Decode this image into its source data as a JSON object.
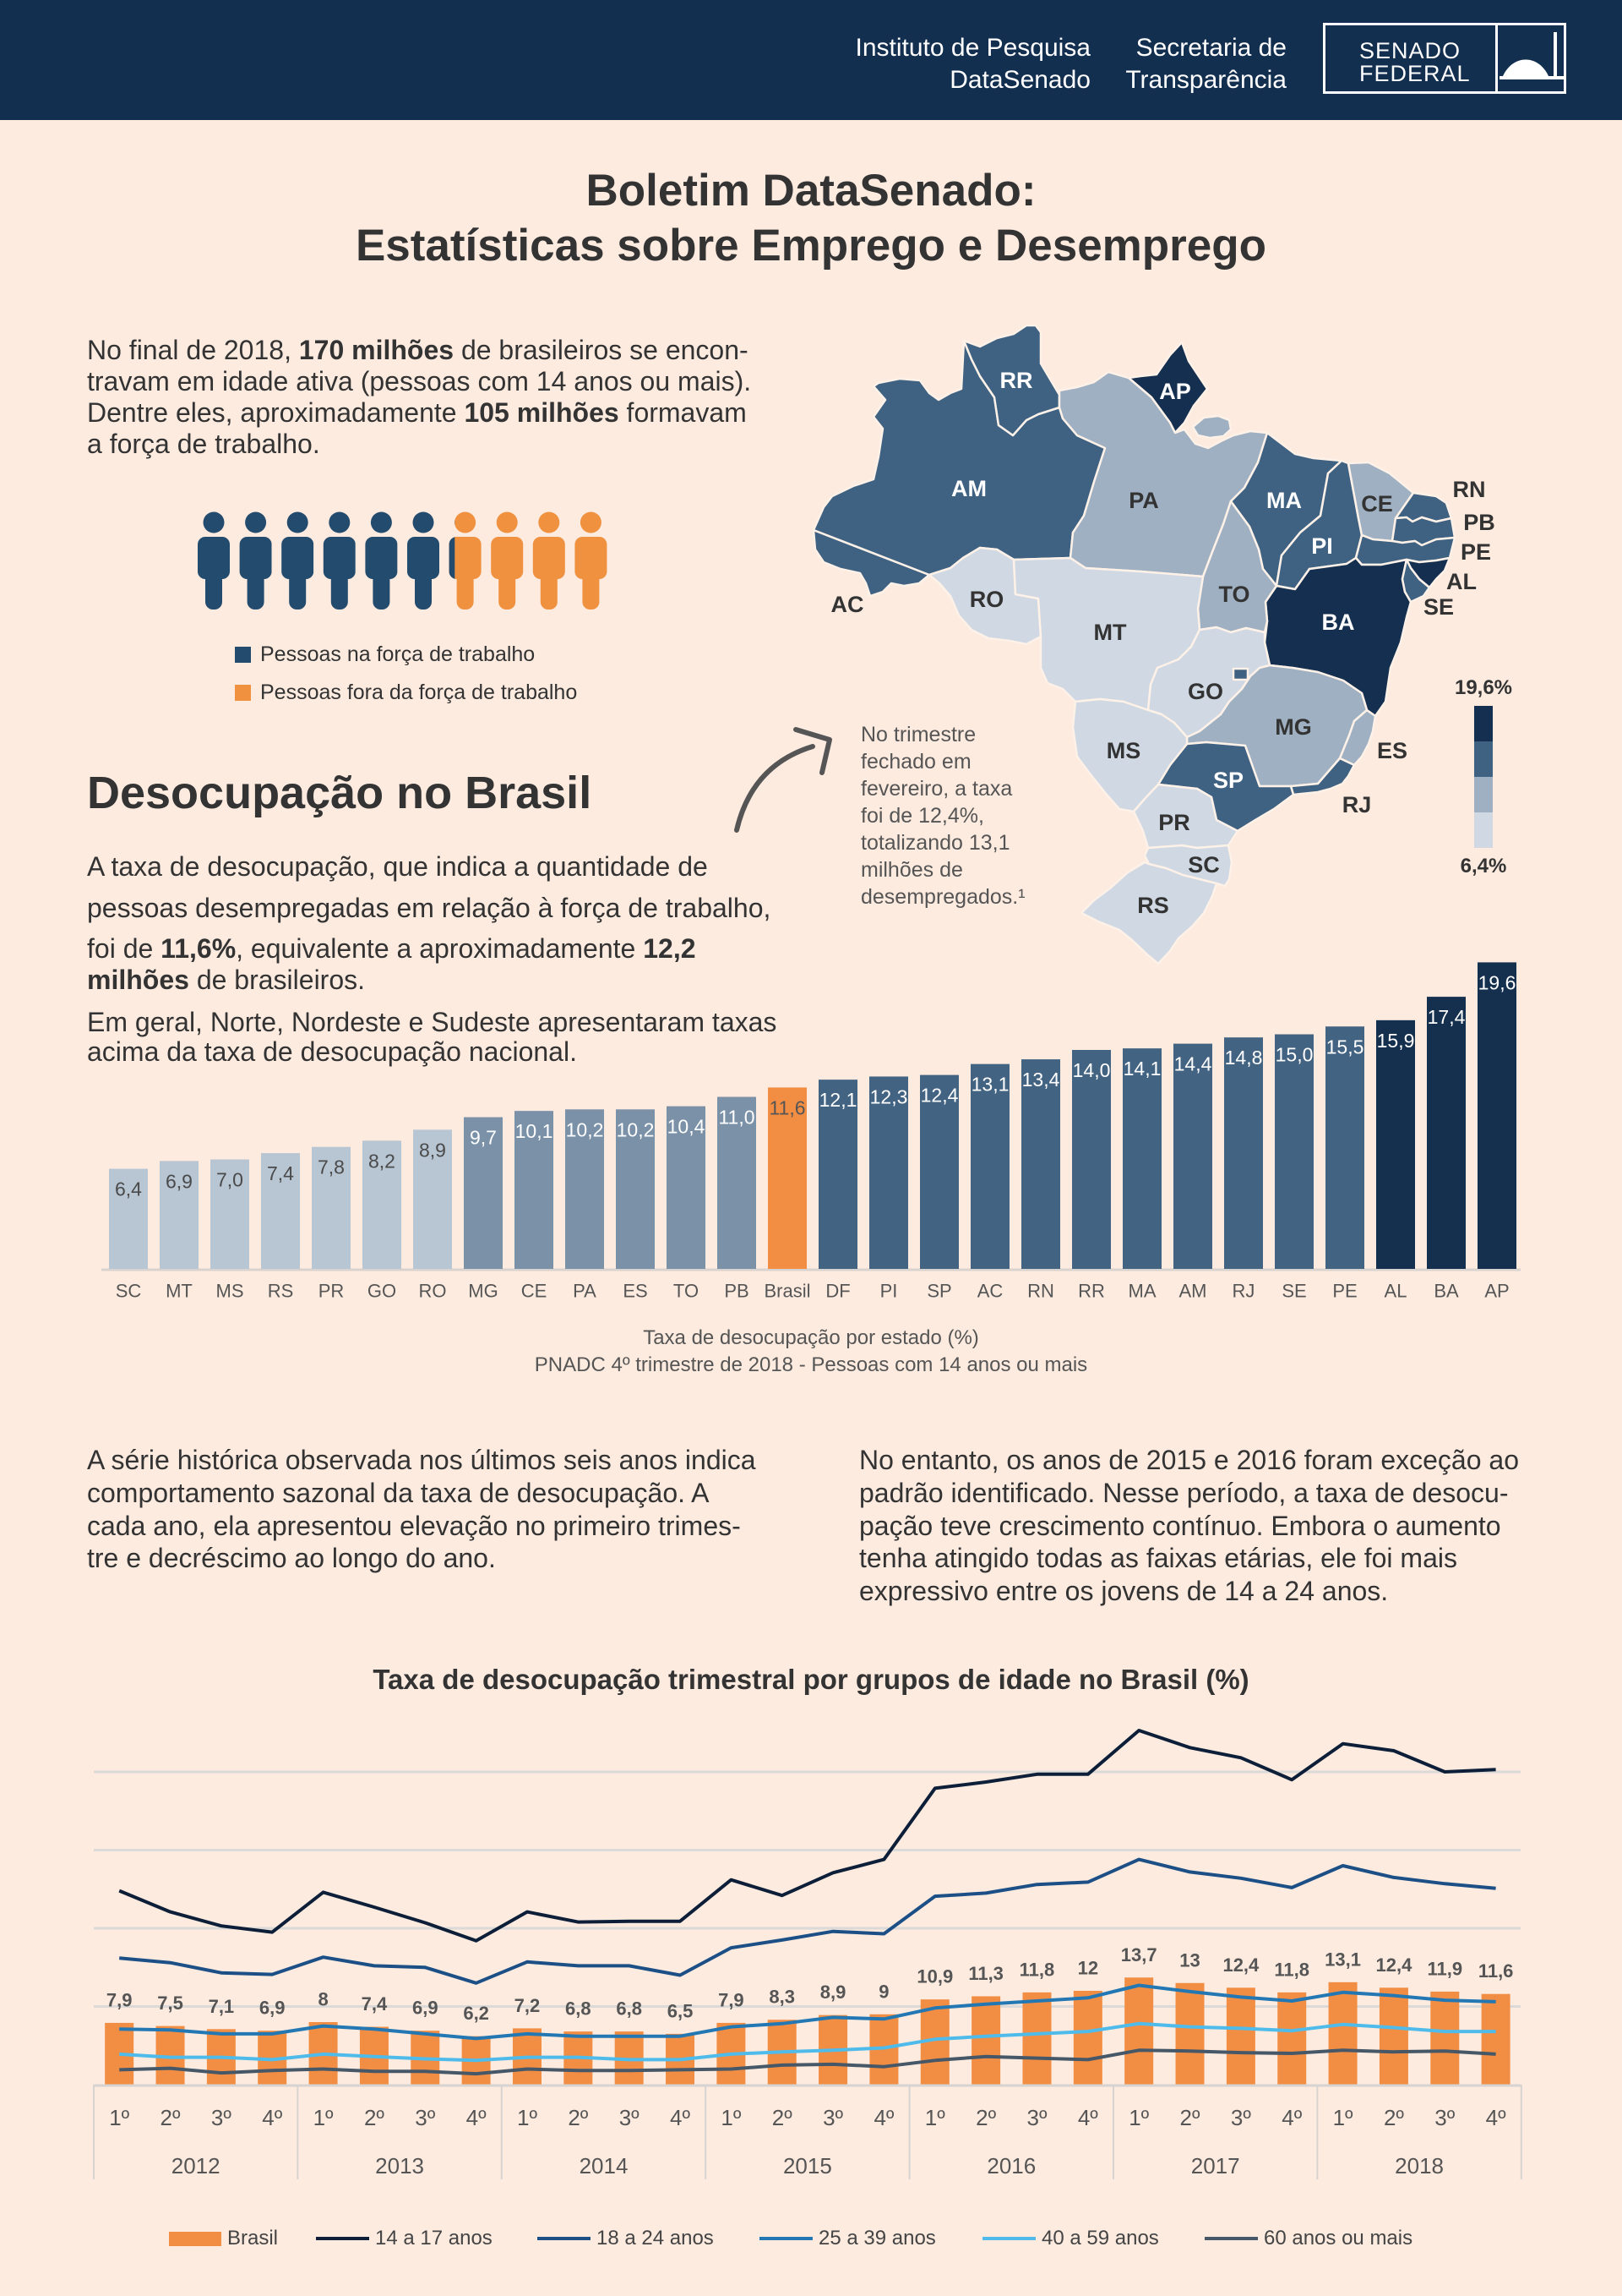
{
  "header": {
    "institute_line1": "Instituto de Pesquisa",
    "institute_line2": "DataSenado",
    "secretariat_line1": "Secretaria de",
    "secretariat_line2": "Transparência",
    "logo_line1": "SENADO",
    "logo_line2": "FEDERAL"
  },
  "title": {
    "line1": "Boletim DataSenado:",
    "line2": "Estatísticas sobre Emprego e Desemprego"
  },
  "intro": {
    "lines": [
      [
        {
          "t": "No final de 2018, "
        },
        {
          "t": "170 milhões",
          "b": true
        },
        {
          "t": " de brasileiros se encon-"
        }
      ],
      [
        {
          "t": "travam em idade ativa (pessoas com 14 anos ou mais)."
        }
      ],
      [
        {
          "t": "Dentre eles, aproximadamente "
        },
        {
          "t": "105 milhões",
          "b": true
        },
        {
          "t": " formavam"
        }
      ],
      [
        {
          "t": "a força de trabalho."
        }
      ]
    ]
  },
  "workforce": {
    "total_millions": 170,
    "labor_force_millions": 105,
    "legend": [
      {
        "label": "Pessoas na força de trabalho",
        "color": "#234b6e"
      },
      {
        "label": "Pessoas fora da força de trabalho",
        "color": "#f0913f"
      }
    ]
  },
  "section": {
    "title": "Desocupação no Brasil",
    "lines": [
      [
        {
          "t": "A taxa de desocupação, que indica a quantidade de"
        }
      ],
      [
        {
          "t": "pessoas desempregadas em relação à força de trabalho,"
        }
      ],
      [
        {
          "t": "foi de "
        },
        {
          "t": "11,6%",
          "b": true
        },
        {
          "t": ", equivalente a aproximadamente "
        },
        {
          "t": "12,2",
          "b": true
        }
      ],
      [
        {
          "t": "milhões",
          "b": true
        },
        {
          "t": " de brasileiros."
        }
      ],
      [
        {
          "t": "Em geral, Norte, Nordeste e Sudeste apresentaram taxas"
        }
      ],
      [
        {
          "t": "acima da taxa de desocupação nacional."
        }
      ]
    ]
  },
  "note": {
    "lines": [
      "No trimestre",
      "fechado em",
      "fevereiro, a taxa",
      "foi de 12,4%,",
      "totalizando 13,1",
      "milhões de",
      "desempregados.¹"
    ]
  },
  "map": {
    "legend_max": "19,6%",
    "legend_min": "6,4%",
    "colors": [
      "#cfd8e3",
      "#9fb0c2",
      "#406282",
      "#142f50"
    ],
    "states": [
      {
        "code": "AC",
        "level": 2
      },
      {
        "code": "AM",
        "level": 2
      },
      {
        "code": "RR",
        "level": 2
      },
      {
        "code": "AP",
        "level": 3
      },
      {
        "code": "PA",
        "level": 1
      },
      {
        "code": "MA",
        "level": 2
      },
      {
        "code": "PI",
        "level": 2
      },
      {
        "code": "CE",
        "level": 1
      },
      {
        "code": "RN",
        "level": 2
      },
      {
        "code": "PB",
        "level": 2
      },
      {
        "code": "PE",
        "level": 2
      },
      {
        "code": "BA",
        "level": 3
      },
      {
        "code": "AL",
        "level": 3
      },
      {
        "code": "SE",
        "level": 2
      },
      {
        "code": "TO",
        "level": 1
      },
      {
        "code": "RO",
        "level": 0
      },
      {
        "code": "MT",
        "level": 0
      },
      {
        "code": "GO",
        "level": 0
      },
      {
        "code": "MG",
        "level": 1
      },
      {
        "code": "ES",
        "level": 1
      },
      {
        "code": "RJ",
        "level": 2
      },
      {
        "code": "SP",
        "level": 2
      },
      {
        "code": "MS",
        "level": 0
      },
      {
        "code": "PR",
        "level": 0
      },
      {
        "code": "SC",
        "level": 0
      },
      {
        "code": "RS",
        "level": 0
      }
    ],
    "extra_levels": {
      "DF": 2
    }
  },
  "paragraphs": {
    "left": [
      "A série histórica observada nos últimos seis anos indica",
      "comportamento sazonal da taxa de desocupação. A",
      "cada ano, ela apresentou elevação no primeiro trimes-",
      "tre e decréscimo ao longo do ano."
    ],
    "right": [
      "No entanto, os anos de 2015 e 2016 foram exceção ao",
      "padrão identificado. Nesse período, a taxa de desocu-",
      "pação teve crescimento contínuo. Embora o aumento",
      "tenha atingido todas as faixas etárias, ele foi mais",
      "expressivo entre os jovens de 14 a 24 anos."
    ]
  },
  "chart_data": [
    {
      "type": "bar",
      "title": "Taxa de desocupação por estado (%)",
      "subtitle": "PNADC 4º trimestre de 2018 - Pessoas com 14 anos ou mais",
      "xlabel": "",
      "ylabel": "",
      "ylim": [
        0,
        20
      ],
      "grid": false,
      "categories": [
        "SC",
        "MT",
        "MS",
        "RS",
        "PR",
        "GO",
        "RO",
        "MG",
        "CE",
        "PA",
        "ES",
        "TO",
        "PB",
        "Brasil",
        "DF",
        "PI",
        "SP",
        "AC",
        "RN",
        "RR",
        "MA",
        "AM",
        "RJ",
        "SE",
        "PE",
        "AL",
        "BA",
        "AP"
      ],
      "values": [
        6.4,
        6.9,
        7.0,
        7.4,
        7.8,
        8.2,
        8.9,
        9.7,
        10.1,
        10.2,
        10.2,
        10.4,
        11.0,
        11.6,
        12.1,
        12.3,
        12.4,
        13.1,
        13.4,
        14.0,
        14.1,
        14.4,
        14.8,
        15.0,
        15.5,
        15.9,
        17.4,
        19.6
      ],
      "value_labels": [
        "6,4",
        "6,9",
        "7,0",
        "7,4",
        "7,8",
        "8,2",
        "8,9",
        "9,7",
        "10,1",
        "10,2",
        "10,2",
        "10,4",
        "11,0",
        "11,6",
        "12,1",
        "12,3",
        "12,4",
        "13,1",
        "13,4",
        "14,0",
        "14,1",
        "14,4",
        "14,8",
        "15,0",
        "15,5",
        "15,9",
        "17,4",
        "19,6"
      ],
      "color_group": [
        0,
        0,
        0,
        0,
        0,
        0,
        0,
        1,
        1,
        1,
        1,
        1,
        1,
        2,
        3,
        3,
        3,
        3,
        3,
        3,
        3,
        3,
        3,
        3,
        3,
        4,
        4,
        4
      ],
      "colors": [
        "#b8c5d3",
        "#7a91a8",
        "#f28e43",
        "#436382",
        "#15304f"
      ]
    },
    {
      "type": "bar+line",
      "title": "Taxa de desocupação trimestral por grupos de idade no Brasil (%)",
      "years": [
        "2012",
        "2013",
        "2014",
        "2015",
        "2016",
        "2017",
        "2018"
      ],
      "quarters": [
        "1º",
        "2º",
        "3º",
        "4º"
      ],
      "ylim": [
        0,
        50
      ],
      "gridlines": [
        10,
        20,
        30,
        40
      ],
      "grid": true,
      "legend_position": "bottom",
      "bar_series": {
        "name": "Brasil",
        "color": "#f28e43",
        "values": [
          7.9,
          7.5,
          7.1,
          6.9,
          8,
          7.4,
          6.9,
          6.2,
          7.2,
          6.8,
          6.8,
          6.5,
          7.9,
          8.3,
          8.9,
          9,
          10.9,
          11.3,
          11.8,
          12,
          13.7,
          13,
          12.4,
          11.8,
          13.1,
          12.4,
          11.9,
          11.6
        ],
        "value_labels": [
          "7,9",
          "7,5",
          "7,1",
          "6,9",
          "8",
          "7,4",
          "6,9",
          "6,2",
          "7,2",
          "6,8",
          "6,8",
          "6,5",
          "7,9",
          "8,3",
          "8,9",
          "9",
          "10,9",
          "11,3",
          "11,8",
          "12",
          "13,7",
          "13",
          "12,4",
          "11,8",
          "13,1",
          "12,4",
          "11,9",
          "11,6"
        ]
      },
      "line_series": [
        {
          "name": "14 a 17 anos",
          "color": "#0d1f38",
          "values": [
            24.8,
            22.1,
            20.3,
            19.5,
            24.6,
            22.7,
            20.7,
            18.4,
            22.1,
            20.8,
            20.9,
            20.9,
            26.2,
            24.2,
            27.1,
            28.8,
            37.9,
            38.7,
            39.7,
            39.7,
            45.3,
            43.1,
            41.8,
            39.0,
            43.6,
            42.7,
            40.0,
            40.3
          ]
        },
        {
          "name": "18 a 24 anos",
          "color": "#1b4f86",
          "values": [
            16.2,
            15.6,
            14.3,
            14.1,
            16.3,
            15.2,
            15.0,
            13.0,
            15.7,
            15.2,
            15.2,
            14.0,
            17.5,
            18.5,
            19.6,
            19.3,
            24.1,
            24.5,
            25.6,
            25.9,
            28.8,
            27.2,
            26.4,
            25.2,
            28.0,
            26.5,
            25.7,
            25.1
          ]
        },
        {
          "name": "25 a 39 anos",
          "color": "#2378b4",
          "values": [
            7.1,
            7.0,
            6.5,
            6.5,
            7.5,
            7.1,
            6.5,
            5.9,
            6.5,
            6.2,
            6.2,
            6.2,
            7.4,
            7.8,
            8.6,
            8.4,
            9.8,
            10.3,
            10.7,
            11.1,
            12.7,
            11.9,
            11.2,
            10.7,
            11.8,
            11.4,
            10.8,
            10.6
          ]
        },
        {
          "name": "40 a 59 anos",
          "color": "#4fbbea",
          "values": [
            3.9,
            3.5,
            3.5,
            3.2,
            3.9,
            3.6,
            3.3,
            3.1,
            3.5,
            3.5,
            3.2,
            3.2,
            3.9,
            4.2,
            4.4,
            4.7,
            5.8,
            6.2,
            6.5,
            6.8,
            7.8,
            7.4,
            7.2,
            6.9,
            7.7,
            7.3,
            6.8,
            6.8
          ]
        },
        {
          "name": "60 anos ou mais",
          "color": "#465868",
          "values": [
            1.9,
            2.1,
            1.5,
            1.8,
            2.0,
            1.7,
            1.7,
            1.4,
            2.0,
            1.8,
            1.8,
            1.9,
            2.0,
            2.5,
            2.6,
            2.3,
            3.1,
            3.6,
            3.4,
            3.2,
            4.4,
            4.3,
            4.1,
            4.0,
            4.4,
            4.2,
            4.3,
            3.9
          ]
        }
      ]
    }
  ]
}
